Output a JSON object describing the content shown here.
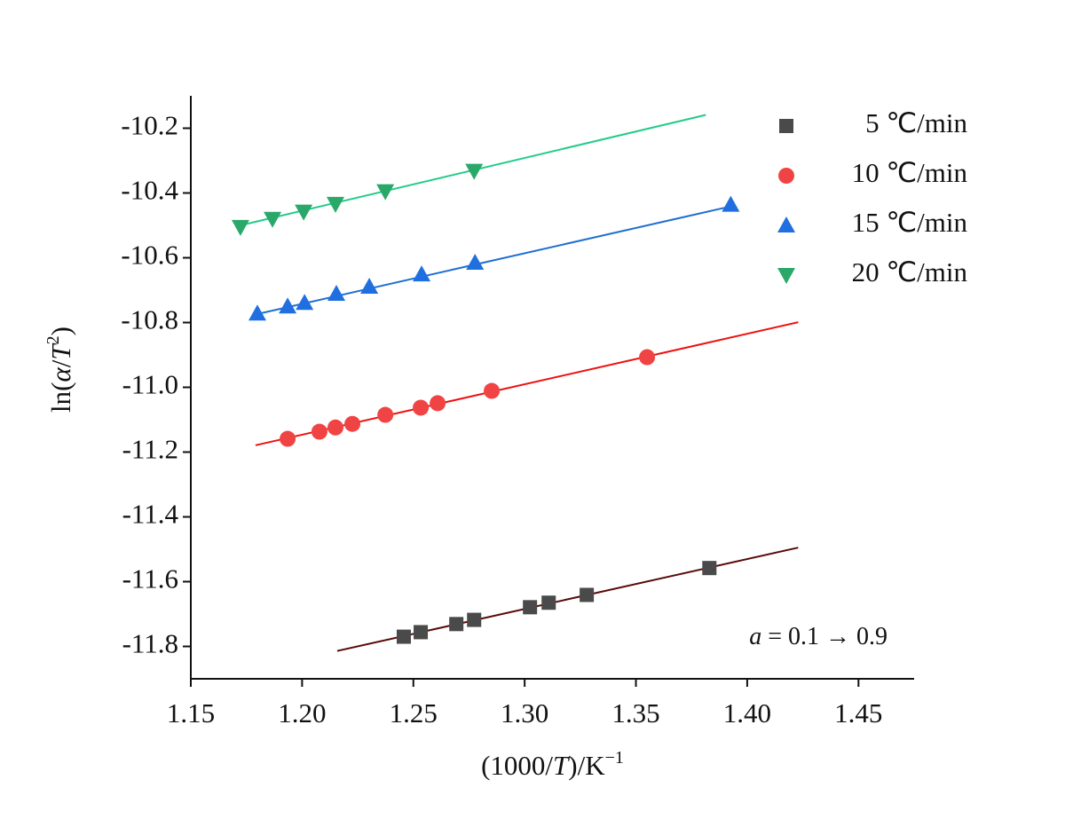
{
  "chart_data": {
    "type": "scatter",
    "xlabel_parts": [
      "(1000/",
      "T",
      ")/K",
      "−1"
    ],
    "ylabel_parts": [
      "ln(",
      "α",
      "/",
      "T",
      "2",
      ")"
    ],
    "annotation": {
      "var": "a",
      "text": " = 0.1 → 0.9"
    },
    "xlim": [
      1.15,
      1.475
    ],
    "ylim": [
      -11.9,
      -10.1
    ],
    "xticks": [
      1.15,
      {
        "value": 1.2,
        "label": "1.20"
      },
      1.25,
      {
        "value": 1.3,
        "label": "1.30"
      },
      1.35,
      {
        "value": 1.4,
        "label": "1.40"
      },
      1.45
    ],
    "yticks": [
      {
        "value": -11.8,
        "label": "-11.8"
      },
      {
        "value": -11.6,
        "label": "-11.6"
      },
      {
        "value": -11.4,
        "label": "-11.4"
      },
      {
        "value": -11.2,
        "label": "-11.2"
      },
      {
        "value": -11.0,
        "label": "-11.0"
      },
      {
        "value": -10.8,
        "label": "-10.8"
      },
      {
        "value": -10.6,
        "label": "-10.6"
      },
      {
        "value": -10.4,
        "label": "-10.4"
      },
      {
        "value": -10.2,
        "label": "-10.2"
      }
    ],
    "legend": "upper right",
    "series": [
      {
        "name": "5 ℃/min",
        "marker": "square",
        "color": "#4a4a4a",
        "fit_color": "#5a0a0a",
        "x": [
          1.2457,
          1.2533,
          1.2693,
          1.2773,
          1.3024,
          1.3108,
          1.3279,
          1.383
        ],
        "values": [
          -11.77,
          -11.756,
          -11.731,
          -11.718,
          -11.679,
          -11.665,
          -11.641,
          -11.558
        ],
        "fit": {
          "x": [
            1.2158,
            1.4229
          ],
          "y": [
            -11.814,
            -11.495
          ]
        }
      },
      {
        "name": "10 ℃/min",
        "marker": "circle",
        "color": "#f04444",
        "fit_color": "#ee1111",
        "x": [
          1.1935,
          1.2078,
          1.215,
          1.2226,
          1.2374,
          1.2533,
          1.2609,
          1.2852,
          1.355
        ],
        "values": [
          -11.159,
          -11.137,
          -11.124,
          -11.113,
          -11.085,
          -11.063,
          -11.049,
          -11.011,
          -10.907
        ],
        "fit": {
          "x": [
            1.1791,
            1.4229
          ],
          "y": [
            -11.179,
            -10.799
          ]
        }
      },
      {
        "name": "15 ℃/min",
        "marker": "triangle-up",
        "color": "#1f6fe0",
        "fit_color": "#1f6fd0",
        "x": [
          1.1799,
          1.1935,
          1.2011,
          1.2154,
          1.2302,
          1.2537,
          1.2777,
          1.3926
        ],
        "values": [
          -10.772,
          -10.75,
          -10.739,
          -10.711,
          -10.689,
          -10.651,
          -10.615,
          -10.436
        ],
        "fit": {
          "x": [
            1.1791,
            1.3922
          ],
          "y": [
            -10.775,
            -10.442
          ]
        }
      },
      {
        "name": "20 ℃/min",
        "marker": "triangle-down",
        "color": "#2aa86a",
        "fit_color": "#22cc88",
        "x": [
          1.1723,
          1.1867,
          1.2007,
          1.215,
          1.2374,
          1.2773
        ],
        "values": [
          -10.505,
          -10.48,
          -10.458,
          -10.434,
          -10.395,
          -10.332
        ],
        "fit": {
          "x": [
            1.1723,
            1.3814
          ],
          "y": [
            -10.5,
            -10.159
          ]
        }
      }
    ]
  }
}
